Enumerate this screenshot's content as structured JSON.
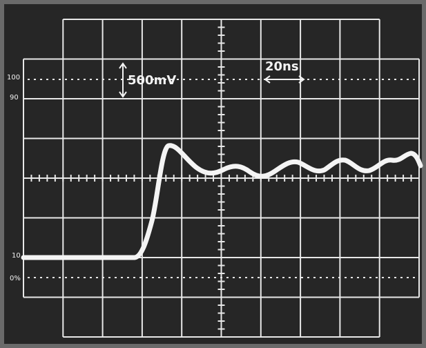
{
  "scale_labels": {
    "level_100": "100",
    "level_90": "90",
    "level_10": "10",
    "level_0": "0%"
  },
  "vertical_scale": "500mV",
  "horizontal_scale": "20ns"
}
